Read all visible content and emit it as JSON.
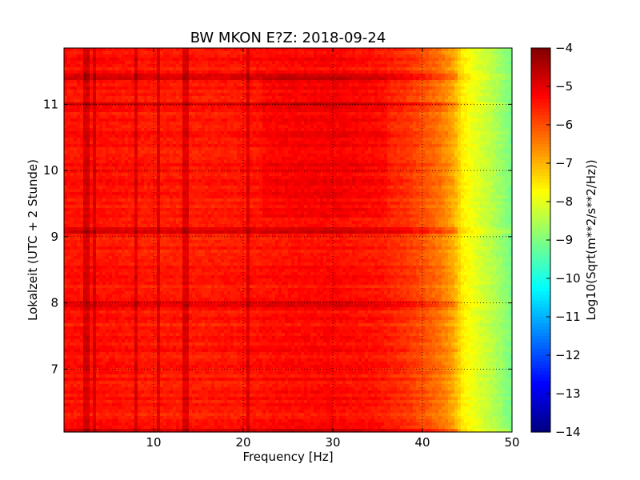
{
  "chart_data": {
    "type": "heatmap",
    "title": "BW MKON E?Z: 2018-09-24",
    "xlabel": "Frequency [Hz]",
    "ylabel": "Lokalzeit (UTC + 2 Stunde)",
    "xlim": [
      0,
      50
    ],
    "ylim": [
      11.85,
      6.05
    ],
    "x_ticks": [
      10,
      20,
      30,
      40,
      50
    ],
    "x_tick_labels": [
      "10",
      "20",
      "30",
      "40",
      "50"
    ],
    "y_ticks": [
      7,
      8,
      9,
      10,
      11
    ],
    "y_tick_labels": [
      "7",
      "8",
      "9",
      "10",
      "11"
    ],
    "grid": true,
    "colormap": "jet",
    "colorbar": {
      "label": "Log10(Sqrt(m**2/s**2/Hz))",
      "range": [
        -14,
        -4
      ],
      "ticks": [
        -4,
        -5,
        -6,
        -7,
        -8,
        -9,
        -10,
        -11,
        -12,
        -13,
        -14
      ],
      "tick_labels": [
        "−4",
        "−5",
        "−6",
        "−7",
        "−8",
        "−9",
        "−10",
        "−11",
        "−12",
        "−13",
        "−14"
      ]
    },
    "spectrum_profile": {
      "frequency_hz": [
        0,
        5,
        10,
        15,
        20,
        25,
        30,
        35,
        38,
        40,
        42,
        43.5,
        44.5,
        46,
        48,
        50
      ],
      "log10_amplitude": [
        -5.4,
        -5.4,
        -5.5,
        -5.5,
        -5.45,
        -5.35,
        -5.3,
        -5.45,
        -5.7,
        -6.0,
        -6.4,
        -6.9,
        -7.6,
        -8.0,
        -8.5,
        -9.1
      ]
    },
    "narrow_lines_hz": [
      2.5,
      3.5,
      8,
      10.5,
      13.6,
      20.5
    ],
    "high_amplitude_rows_time": [
      6.05,
      7.97,
      9.1,
      11.0,
      11.42
    ]
  }
}
